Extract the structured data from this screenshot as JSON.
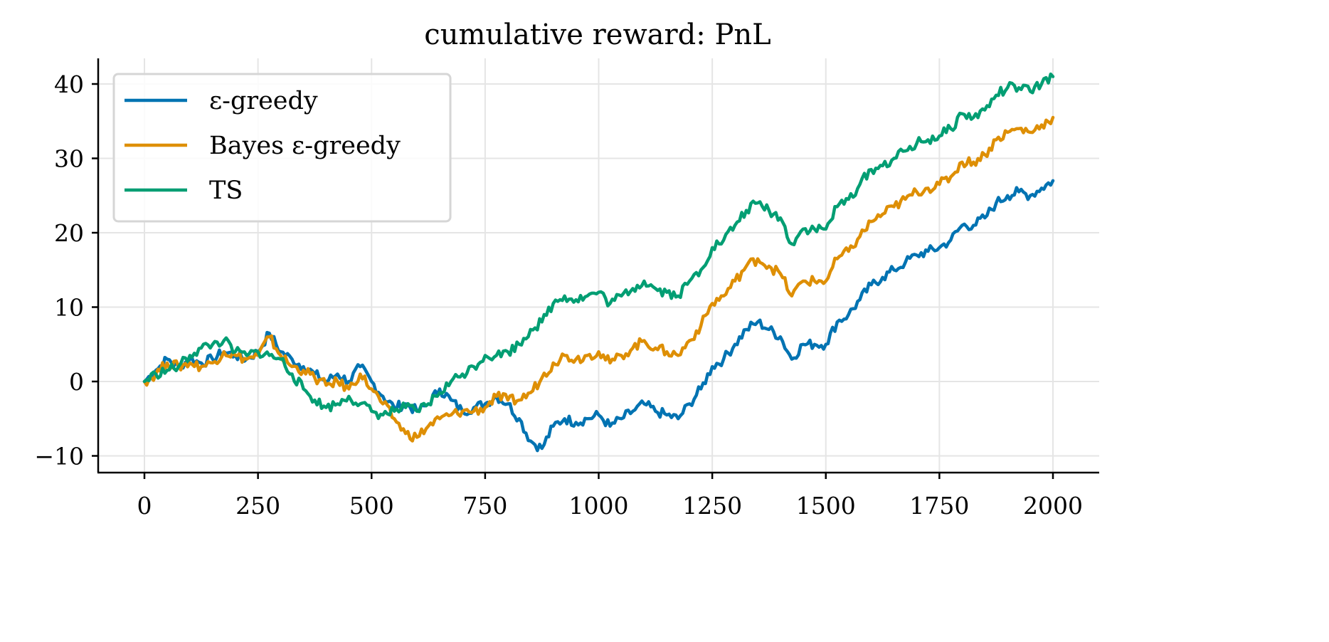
{
  "chart_data": {
    "type": "line",
    "title": "cumulative reward: PnL",
    "xlabel": "",
    "ylabel": "",
    "xlim": [
      -100,
      2100
    ],
    "ylim": [
      -12.5,
      43.5
    ],
    "xticks": [
      0,
      250,
      500,
      750,
      1000,
      1250,
      1500,
      1750,
      2000
    ],
    "xtick_labels": [
      "0",
      "250",
      "500",
      "750",
      "1000",
      "1250",
      "1500",
      "1750",
      "2000"
    ],
    "yticks": [
      -10,
      0,
      10,
      20,
      30,
      40
    ],
    "ytick_labels": [
      "−10",
      "0",
      "10",
      "20",
      "30",
      "40"
    ],
    "grid": true,
    "legend_position": "top-left",
    "x_step": 25,
    "series": [
      {
        "name": "ε-greedy",
        "color": "#0173b2",
        "values": [
          0,
          1.5,
          3,
          2,
          3,
          2.5,
          3,
          4,
          3.5,
          3,
          4,
          6.5,
          4,
          3,
          2,
          1,
          0,
          1,
          0,
          2,
          0,
          -2,
          -3.5,
          -3,
          -4,
          -3,
          -1,
          -2.5,
          -4,
          -3.5,
          -3,
          -2,
          -3,
          -5,
          -8,
          -9,
          -6,
          -5,
          -5.5,
          -5,
          -4.5,
          -6,
          -5,
          -4,
          -3,
          -4,
          -4.5,
          -5,
          -3,
          -1,
          2,
          3,
          5,
          7,
          8,
          7,
          6,
          3,
          5,
          5,
          5,
          8,
          9,
          11,
          13,
          14,
          15,
          16,
          17,
          17.5,
          18,
          19,
          21,
          21,
          22,
          24,
          25,
          25.5,
          25,
          26,
          27
        ]
      },
      {
        "name": "Bayes ε-greedy",
        "color": "#de8f05",
        "values": [
          0,
          1,
          2.5,
          2,
          2.5,
          2,
          2.5,
          4,
          3.5,
          3,
          3.5,
          6,
          3.5,
          2,
          1.5,
          0.5,
          -0.5,
          0,
          -1,
          1,
          -1,
          -3,
          -5,
          -7,
          -7.5,
          -6,
          -5,
          -4.5,
          -4,
          -4,
          -3.5,
          -2,
          -2.5,
          -2.5,
          -1.5,
          0.5,
          2.5,
          3.5,
          3,
          3.5,
          4,
          2.5,
          3.5,
          4.5,
          5.5,
          4.5,
          4,
          3.5,
          5.5,
          7.5,
          10.5,
          11.5,
          13.5,
          15.5,
          16.5,
          15.5,
          14.5,
          11.5,
          13.5,
          13.5,
          13.5,
          16.5,
          17.5,
          19.5,
          21.5,
          22.5,
          23.5,
          24.5,
          25.5,
          26,
          26.5,
          27.5,
          29.5,
          29.5,
          30.5,
          32.5,
          33.5,
          34,
          33.5,
          34.5,
          35.5
        ]
      },
      {
        "name": "TS",
        "color": "#029e73",
        "values": [
          0,
          1,
          1.5,
          2,
          3.5,
          4.5,
          5,
          5.5,
          4,
          3.5,
          4,
          3.5,
          3,
          1,
          -1,
          -2.5,
          -3.5,
          -3,
          -2,
          -3,
          -4,
          -4.5,
          -4,
          -3.5,
          -4,
          -3,
          -1.5,
          0,
          1,
          2,
          3.5,
          3.5,
          4,
          5,
          7,
          8,
          10.5,
          11.5,
          11,
          11.5,
          12,
          10.5,
          11.5,
          12.5,
          13.5,
          12.5,
          12,
          11.5,
          13.5,
          15,
          18,
          19,
          21,
          23,
          24,
          23,
          22,
          18.5,
          20.5,
          20.5,
          20.5,
          23.5,
          24.5,
          26.5,
          28.5,
          29,
          30,
          31,
          32,
          32.5,
          33,
          34,
          36,
          35.5,
          36.5,
          38.5,
          39.5,
          39.5,
          39,
          40,
          41
        ]
      }
    ]
  }
}
